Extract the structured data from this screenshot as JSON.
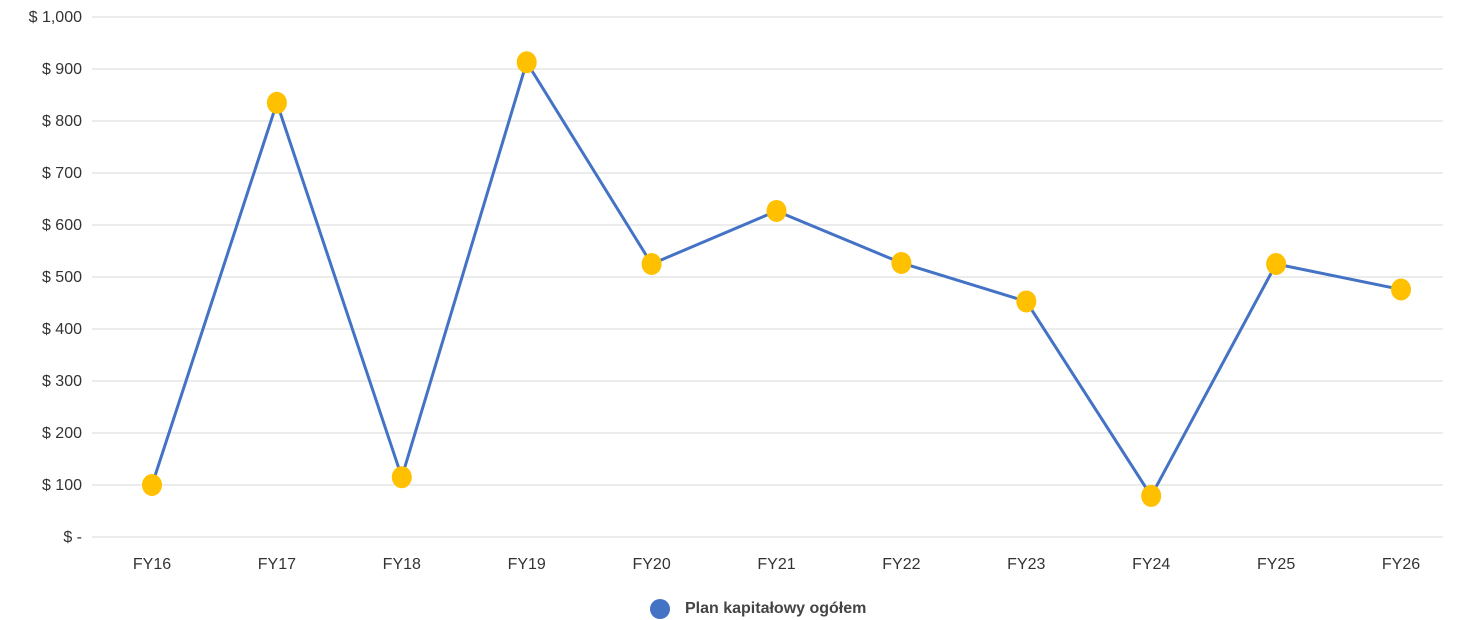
{
  "chart_data": {
    "type": "line",
    "categories": [
      "FY16",
      "FY17",
      "FY18",
      "FY19",
      "FY20",
      "FY21",
      "FY22",
      "FY23",
      "FY24",
      "FY25",
      "FY26"
    ],
    "series": [
      {
        "name": "Plan kapitałowy ogółem",
        "values": [
          100,
          835,
          115,
          913,
          525,
          627,
          527,
          453,
          79,
          525,
          476
        ]
      }
    ],
    "ylim": [
      0,
      1000
    ],
    "yticks": [
      {
        "value": 0,
        "label": "$ -"
      },
      {
        "value": 100,
        "label": "$ 100"
      },
      {
        "value": 200,
        "label": "$ 200"
      },
      {
        "value": 300,
        "label": "$ 300"
      },
      {
        "value": 400,
        "label": "$ 400"
      },
      {
        "value": 500,
        "label": "$ 500"
      },
      {
        "value": 600,
        "label": "$ 600"
      },
      {
        "value": 700,
        "label": "$ 700"
      },
      {
        "value": 800,
        "label": "$ 800"
      },
      {
        "value": 900,
        "label": "$ 900"
      },
      {
        "value": 1000,
        "label": "$ 1,000"
      }
    ],
    "grid": true,
    "legend_position": "bottom",
    "colors": {
      "line": "#4472C4",
      "marker": "#FFC000",
      "legend_marker": "#4472C4",
      "grid": "#D9D9D9"
    }
  }
}
